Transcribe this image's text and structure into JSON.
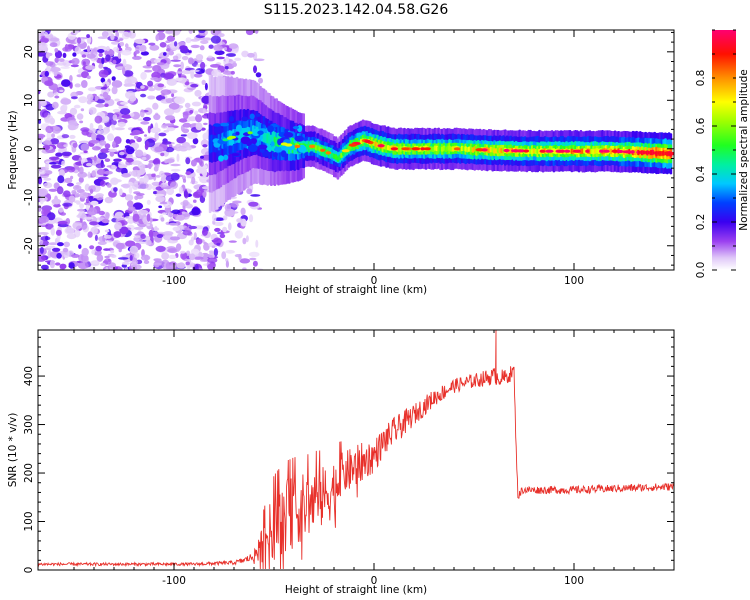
{
  "figure": {
    "title": "S115.2023.142.04.58.G26"
  },
  "colors": {
    "snr_line": "#e8312b",
    "cmap": [
      "#ffffff",
      "#e8d8f8",
      "#a85cf0",
      "#5a00e8",
      "#1010ff",
      "#00c8ff",
      "#00e090",
      "#30ff00",
      "#ffff00",
      "#ff8c00",
      "#ff0000",
      "#ff0060"
    ]
  },
  "chart_data": [
    {
      "type": "heatmap",
      "title": "S115.2023.142.04.58.G26",
      "xlabel": "Height of straight line (km)",
      "ylabel": "Frequency (Hz)",
      "xlim": [
        -168,
        150
      ],
      "ylim": [
        -25,
        24.5
      ],
      "xticks": [
        -100,
        0,
        100
      ],
      "yticks": [
        -20,
        -10,
        0,
        10,
        20
      ],
      "colorbar": {
        "label": "Normalized spectral amplitude",
        "range": [
          0,
          1
        ],
        "ticks": [
          0.0,
          0.2,
          0.4,
          0.6,
          0.8
        ]
      },
      "noise_region_x": [
        -168,
        -70
      ],
      "signal_ridge": {
        "x": [
          -80,
          -70,
          -60,
          -50,
          -40,
          -30,
          -22,
          -18,
          -12,
          -5,
          0,
          10,
          20,
          40,
          60,
          80,
          100,
          120,
          148
        ],
        "freq": [
          1,
          2.5,
          3.5,
          1.5,
          0.5,
          0.5,
          -1,
          -2,
          0.5,
          1.8,
          1,
          0,
          0,
          0,
          -0.3,
          -0.5,
          -0.5,
          -0.5,
          -1
        ],
        "amplitude": [
          0.25,
          0.35,
          0.35,
          0.45,
          0.55,
          0.55,
          0.5,
          0.5,
          0.6,
          0.65,
          0.7,
          0.7,
          0.65,
          0.65,
          0.7,
          0.7,
          0.75,
          0.75,
          0.95
        ]
      }
    },
    {
      "type": "line",
      "xlabel": "Height of straight line (km)",
      "ylabel": "SNR (10 * v/v)",
      "xlim": [
        -168,
        150
      ],
      "ylim": [
        0,
        495
      ],
      "xticks": [
        -100,
        0,
        100
      ],
      "yticks": [
        0,
        100,
        200,
        300,
        400
      ],
      "series": [
        {
          "x": [
            -168,
            -150,
            -130,
            -110,
            -90,
            -70,
            -65,
            -60,
            -55,
            -50,
            -45,
            -40,
            -35,
            -30,
            -25,
            -20,
            -15,
            -10,
            -5,
            0,
            5,
            10,
            20,
            30,
            40,
            50,
            60,
            65,
            70,
            71,
            72,
            74,
            80,
            100,
            120,
            150
          ],
          "y": [
            12,
            12,
            12,
            12,
            12,
            15,
            20,
            28,
            60,
            90,
            110,
            120,
            130,
            140,
            150,
            170,
            200,
            210,
            225,
            235,
            265,
            285,
            320,
            355,
            380,
            390,
            400,
            395,
            410,
            260,
            150,
            165,
            165,
            165,
            168,
            172
          ],
          "noise": [
            3,
            3,
            3,
            3,
            3,
            4,
            6,
            10,
            45,
            70,
            75,
            75,
            70,
            70,
            65,
            60,
            45,
            45,
            40,
            35,
            30,
            30,
            22,
            18,
            15,
            15,
            18,
            18,
            15,
            10,
            8,
            8,
            8,
            8,
            8,
            8
          ]
        }
      ],
      "annotations": [
        {
          "x": 61,
          "y": 495,
          "label": ""
        }
      ]
    }
  ]
}
